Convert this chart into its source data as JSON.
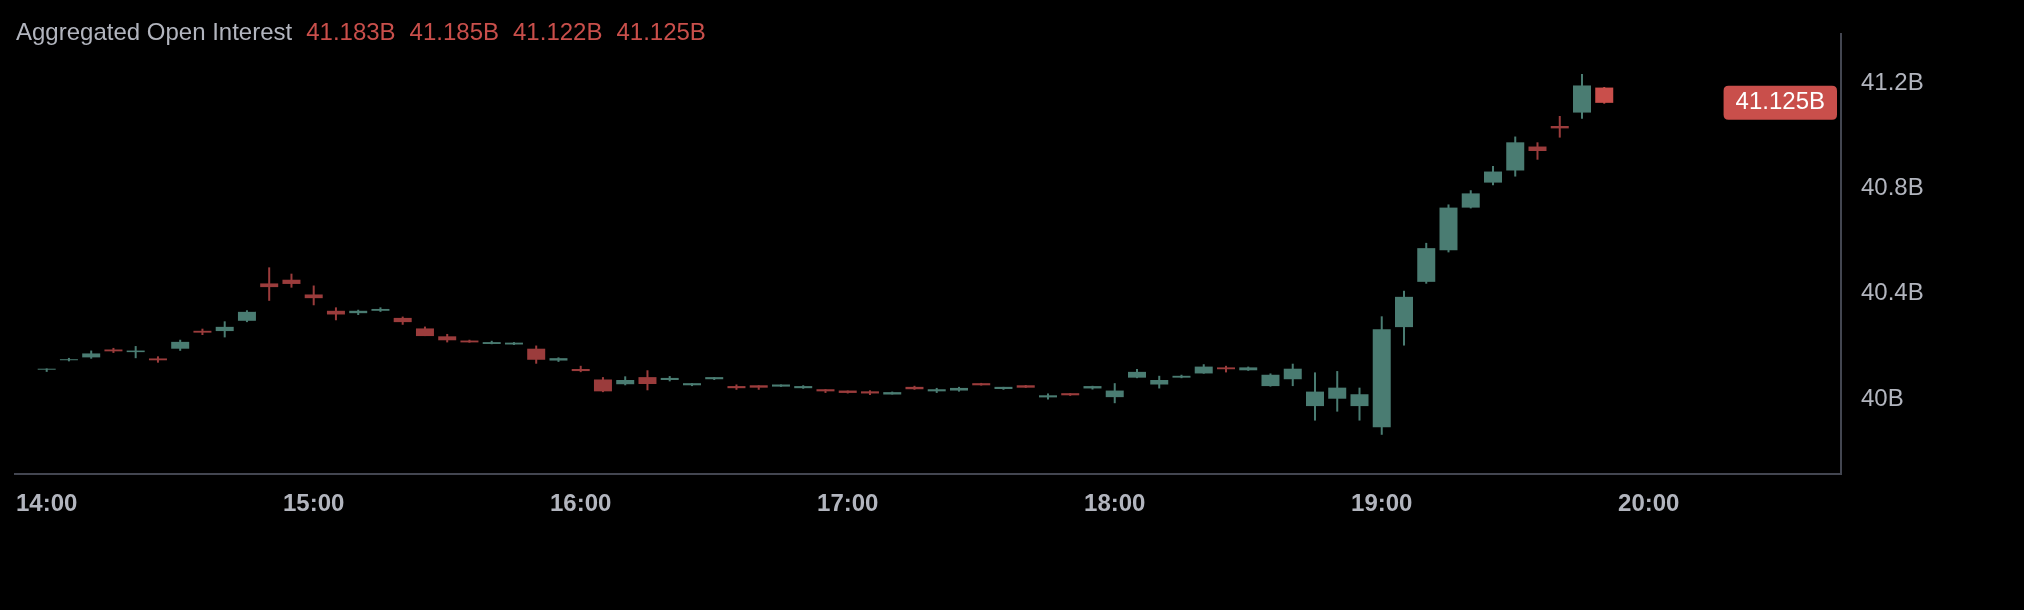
{
  "chart_data": {
    "type": "candlestick",
    "title": "Aggregated Open Interest",
    "annotations": [
      "41.183B",
      "41.185B",
      "41.122B",
      "41.125B",
      "41.125B"
    ],
    "x": [
      14,
      14.0833,
      14.1667,
      14.25,
      14.3333,
      14.4167,
      14.5,
      14.5833,
      14.6667,
      14.75,
      14.8333,
      14.9167,
      15,
      15.0833,
      15.1667,
      15.25,
      15.3333,
      15.4167,
      15.5,
      15.5833,
      15.6667,
      15.75,
      15.8333,
      15.9167,
      16,
      16.0833,
      16.1667,
      16.25,
      16.3333,
      16.4167,
      16.5,
      16.5833,
      16.6667,
      16.75,
      16.8333,
      16.9167,
      17,
      17.0833,
      17.1667,
      17.25,
      17.3333,
      17.4167,
      17.5,
      17.5833,
      17.6667,
      17.75,
      17.8333,
      17.9167,
      18,
      18.0833,
      18.1667,
      18.25,
      18.3333,
      18.4167,
      18.5,
      18.5833,
      18.6667,
      18.75,
      18.8333,
      18.9167,
      19,
      19.0833,
      19.1667,
      19.25,
      19.3333,
      19.4167,
      19.5,
      19.5833,
      19.6667,
      19.75,
      19.8333
    ],
    "ohlc": [
      [
        40.113,
        40.116,
        40.103,
        40.115
      ],
      [
        40.149,
        40.156,
        40.143,
        40.151
      ],
      [
        40.158,
        40.184,
        40.153,
        40.173
      ],
      [
        40.188,
        40.194,
        40.175,
        40.181
      ],
      [
        40.178,
        40.201,
        40.155,
        40.184
      ],
      [
        40.154,
        40.162,
        40.138,
        40.147
      ],
      [
        40.191,
        40.225,
        40.183,
        40.217
      ],
      [
        40.259,
        40.267,
        40.243,
        40.252
      ],
      [
        40.258,
        40.295,
        40.234,
        40.274
      ],
      [
        40.297,
        40.337,
        40.292,
        40.331
      ],
      [
        40.439,
        40.5,
        40.373,
        40.425
      ],
      [
        40.453,
        40.476,
        40.423,
        40.437
      ],
      [
        40.397,
        40.431,
        40.356,
        40.383
      ],
      [
        40.335,
        40.348,
        40.299,
        40.321
      ],
      [
        40.326,
        40.339,
        40.319,
        40.335
      ],
      [
        40.335,
        40.348,
        40.331,
        40.342
      ],
      [
        40.308,
        40.313,
        40.282,
        40.292
      ],
      [
        40.268,
        40.275,
        40.239,
        40.239
      ],
      [
        40.238,
        40.247,
        40.215,
        40.223
      ],
      [
        40.222,
        40.225,
        40.214,
        40.215
      ],
      [
        40.209,
        40.221,
        40.208,
        40.216
      ],
      [
        40.207,
        40.216,
        40.205,
        40.214
      ],
      [
        40.191,
        40.203,
        40.134,
        40.149
      ],
      [
        40.146,
        40.158,
        40.141,
        40.155
      ],
      [
        40.114,
        40.126,
        40.102,
        40.106
      ],
      [
        40.074,
        40.083,
        40.026,
        40.029
      ],
      [
        40.056,
        40.086,
        40.052,
        40.072
      ],
      [
        40.083,
        40.109,
        40.033,
        40.057
      ],
      [
        40.072,
        40.087,
        40.067,
        40.08
      ],
      [
        40.052,
        40.06,
        40.049,
        40.06
      ],
      [
        40.075,
        40.083,
        40.072,
        40.083
      ],
      [
        40.049,
        40.055,
        40.035,
        40.041
      ],
      [
        40.052,
        40.052,
        40.035,
        40.043
      ],
      [
        40.047,
        40.055,
        40.046,
        40.055
      ],
      [
        40.041,
        40.052,
        40.039,
        40.049
      ],
      [
        40.037,
        40.037,
        40.023,
        40.029
      ],
      [
        40.032,
        40.032,
        40.021,
        40.023
      ],
      [
        40.029,
        40.033,
        40.015,
        40.021
      ],
      [
        40.017,
        40.028,
        40.017,
        40.026
      ],
      [
        40.046,
        40.05,
        40.035,
        40.037
      ],
      [
        40.029,
        40.042,
        40.023,
        40.037
      ],
      [
        40.032,
        40.046,
        40.028,
        40.042
      ],
      [
        40.06,
        40.061,
        40.051,
        40.052
      ],
      [
        40.038,
        40.046,
        40.035,
        40.046
      ],
      [
        40.052,
        40.053,
        40.042,
        40.043
      ],
      [
        40.006,
        40.021,
        39.998,
        40.014
      ],
      [
        40.022,
        40.022,
        40.012,
        40.014
      ],
      [
        40.04,
        40.05,
        40.036,
        40.049
      ],
      [
        40.007,
        40.06,
        39.984,
        40.032
      ],
      [
        40.081,
        40.114,
        40.079,
        40.103
      ],
      [
        40.055,
        40.088,
        40.04,
        40.072
      ],
      [
        40.081,
        40.092,
        40.079,
        40.088
      ],
      [
        40.097,
        40.132,
        40.096,
        40.123
      ],
      [
        40.12,
        40.126,
        40.101,
        40.113
      ],
      [
        40.109,
        40.123,
        40.107,
        40.12
      ],
      [
        40.049,
        40.097,
        40.047,
        40.092
      ],
      [
        40.075,
        40.134,
        40.049,
        40.115
      ],
      [
        39.973,
        40.101,
        39.918,
        40.028
      ],
      [
        40.001,
        40.106,
        39.952,
        40.043
      ],
      [
        39.973,
        40.043,
        39.918,
        40.018
      ],
      [
        39.893,
        40.314,
        39.864,
        40.265
      ],
      [
        40.273,
        40.411,
        40.203,
        40.388
      ],
      [
        40.445,
        40.593,
        40.438,
        40.573
      ],
      [
        40.565,
        40.739,
        40.557,
        40.727
      ],
      [
        40.727,
        40.793,
        40.724,
        40.781
      ],
      [
        40.822,
        40.885,
        40.812,
        40.864
      ],
      [
        40.868,
        40.997,
        40.845,
        40.975
      ],
      [
        40.959,
        40.975,
        40.909,
        40.942
      ],
      [
        41.037,
        41.075,
        40.993,
        41.028
      ],
      [
        41.088,
        41.235,
        41.065,
        41.191
      ],
      [
        41.183,
        41.185,
        41.122,
        41.125
      ]
    ],
    "colors": [
      "#4a7c72",
      "#4a7c72",
      "#4a7c72",
      "#9b3c3c",
      "#4a7c72",
      "#9b3c3c",
      "#4a7c72",
      "#9b3c3c",
      "#4a7c72",
      "#4a7c72",
      "#9b3c3c",
      "#9b3c3c",
      "#9b3c3c",
      "#9b3c3c",
      "#4a7c72",
      "#4a7c72",
      "#9b3c3c",
      "#9b3c3c",
      "#9b3c3c",
      "#9b3c3c",
      "#4a7c72",
      "#4a7c72",
      "#9b3c3c",
      "#4a7c72",
      "#9b3c3c",
      "#9b3c3c",
      "#4a7c72",
      "#9b3c3c",
      "#4a7c72",
      "#4a7c72",
      "#4a7c72",
      "#9b3c3c",
      "#9b3c3c",
      "#4a7c72",
      "#4a7c72",
      "#9b3c3c",
      "#9b3c3c",
      "#9b3c3c",
      "#4a7c72",
      "#9b3c3c",
      "#4a7c72",
      "#4a7c72",
      "#9b3c3c",
      "#4a7c72",
      "#9b3c3c",
      "#4a7c72",
      "#9b3c3c",
      "#4a7c72",
      "#4a7c72",
      "#4a7c72",
      "#4a7c72",
      "#4a7c72",
      "#4a7c72",
      "#9b3c3c",
      "#4a7c72",
      "#4a7c72",
      "#4a7c72",
      "#4a7c72",
      "#4a7c72",
      "#4a7c72",
      "#4a7c72",
      "#4a7c72",
      "#4a7c72",
      "#4a7c72",
      "#4a7c72",
      "#4a7c72",
      "#4a7c72",
      "#9b3c3c",
      "#9b3c3c",
      "#4a7c72",
      "#c94f4b"
    ],
    "xlim": [
      13.88,
      20.72
    ],
    "xticks": [
      {
        "value": 14,
        "label": "14:00"
      },
      {
        "value": 15,
        "label": "15:00"
      },
      {
        "value": 16,
        "label": "16:00"
      },
      {
        "value": 17,
        "label": "17:00"
      },
      {
        "value": 18,
        "label": "18:00"
      },
      {
        "value": 19,
        "label": "19:00"
      },
      {
        "value": 20,
        "label": "20:00"
      }
    ],
    "ylim": [
      39.715,
      41.385
    ],
    "yticks": [
      {
        "value": 40,
        "label": "40B"
      },
      {
        "value": 40.4,
        "label": "40.4B"
      },
      {
        "value": 40.8,
        "label": "40.8B"
      },
      {
        "value": 41.2,
        "label": "41.2B"
      }
    ],
    "grid": false
  }
}
